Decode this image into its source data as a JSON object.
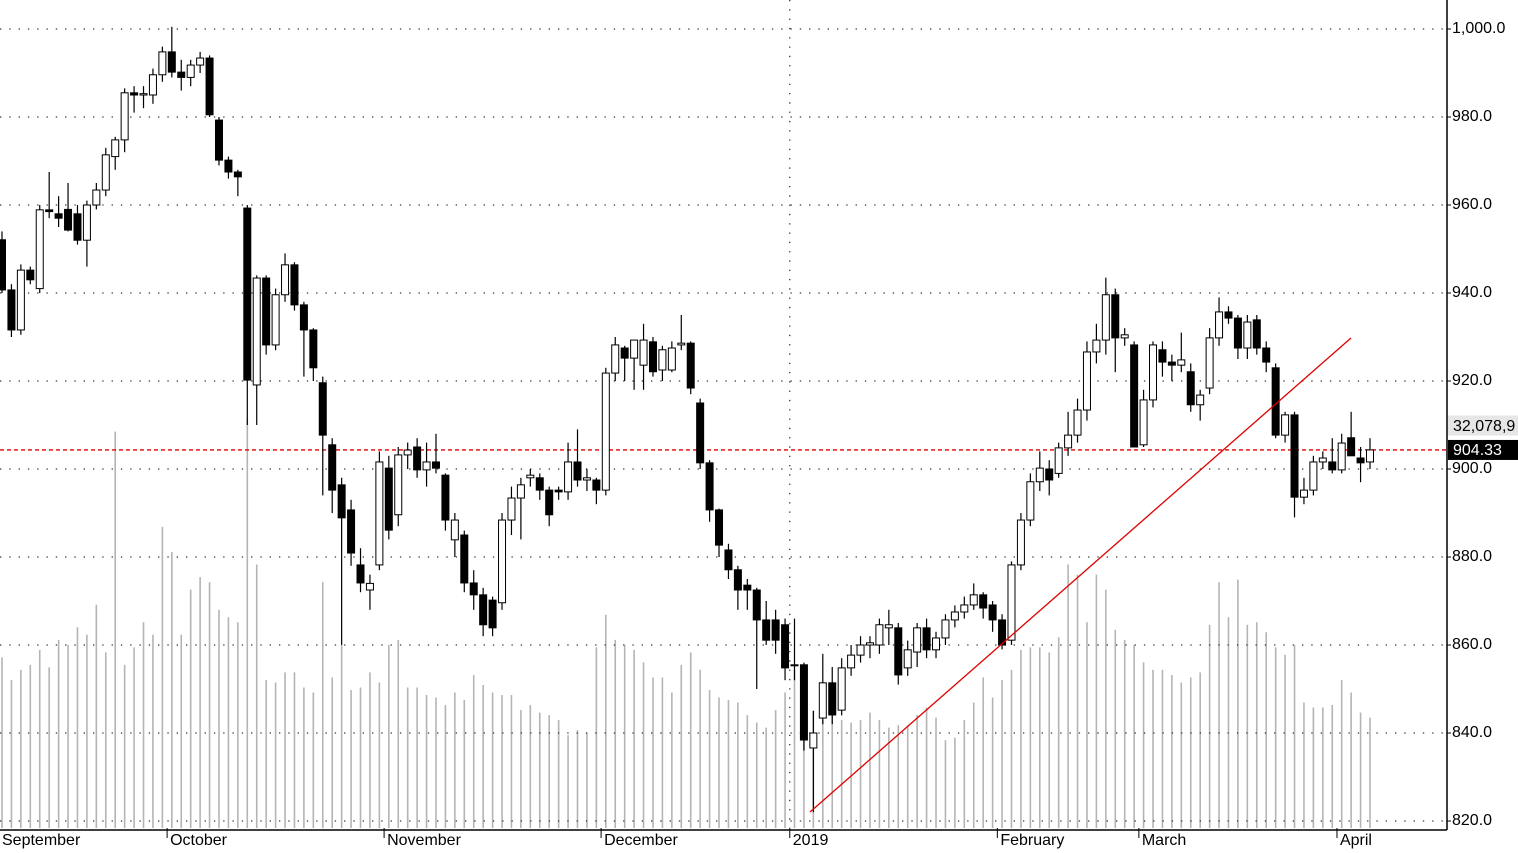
{
  "chart_data": {
    "type": "candlestick",
    "categories": [
      null,
      null,
      null,
      null,
      null,
      null,
      null,
      null,
      null,
      null,
      null,
      null,
      null,
      null,
      null,
      null,
      null,
      null,
      "October",
      null,
      null,
      null,
      null,
      null,
      null,
      null,
      null,
      null,
      null,
      null,
      null,
      null,
      null,
      null,
      null,
      null,
      null,
      null,
      null,
      null,
      null,
      "November",
      null,
      null,
      null,
      null,
      null,
      null,
      null,
      null,
      null,
      null,
      null,
      null,
      null,
      null,
      null,
      null,
      null,
      null,
      null,
      null,
      null,
      null,
      "December",
      null,
      null,
      null,
      null,
      null,
      null,
      null,
      null,
      null,
      null,
      null,
      null,
      null,
      null,
      null,
      null,
      null,
      null,
      null,
      "2019",
      null,
      null,
      null,
      null,
      null,
      null,
      null,
      null,
      null,
      null,
      null,
      null,
      null,
      null,
      null,
      null,
      null,
      null,
      null,
      null,
      null,
      "February",
      null,
      null,
      null,
      null,
      null,
      null,
      null,
      null,
      null,
      null,
      null,
      null,
      null,
      null,
      "March",
      null,
      null,
      null,
      null,
      null,
      null,
      null,
      null,
      null,
      null,
      null,
      null,
      null,
      null,
      null,
      null,
      null,
      null,
      null,
      null,
      "April",
      null,
      null,
      null
    ],
    "first_label": "September",
    "candles": [
      [
        952.1,
        954,
        940,
        940.7
      ],
      [
        940.7,
        942,
        930,
        931.6
      ],
      [
        931.6,
        946.5,
        930.5,
        945.2
      ],
      [
        945.2,
        946,
        942,
        943
      ],
      [
        941,
        960,
        940,
        958.9
      ],
      [
        958.9,
        967.5,
        957,
        958.5
      ],
      [
        958,
        962,
        955,
        957
      ],
      [
        959,
        965,
        954,
        954.3
      ],
      [
        958,
        960,
        951,
        952
      ],
      [
        952,
        961,
        946,
        960
      ],
      [
        960,
        965,
        959,
        963.4
      ],
      [
        963.4,
        973,
        962,
        971.4
      ],
      [
        971,
        975.5,
        968,
        974.8
      ],
      [
        974.8,
        986.5,
        972,
        985.5
      ],
      [
        985.5,
        987,
        981,
        985
      ],
      [
        985,
        987,
        982,
        985.3
      ],
      [
        985,
        991,
        983,
        989.6
      ],
      [
        989.6,
        996,
        988,
        994.8
      ],
      [
        994.8,
        1000.5,
        989,
        990.2
      ],
      [
        990.2,
        993,
        986,
        989
      ],
      [
        989,
        993,
        987,
        991.8
      ],
      [
        991.8,
        994.8,
        990,
        993.4
      ],
      [
        993.4,
        994,
        980,
        980.5
      ],
      [
        979.3,
        980,
        969,
        970.2
      ],
      [
        970.2,
        971,
        966,
        967.5
      ],
      [
        967.5,
        968,
        962,
        966.4
      ],
      [
        959.3,
        960,
        910,
        920.2
      ],
      [
        919.1,
        944,
        910,
        943.4
      ],
      [
        943.4,
        944,
        926,
        928.2
      ],
      [
        928.2,
        941,
        927,
        939.6
      ],
      [
        939.6,
        949,
        938,
        946.4
      ],
      [
        946.4,
        947,
        936,
        937.3
      ],
      [
        937.3,
        938,
        921,
        931.6
      ],
      [
        931.6,
        932,
        920,
        923
      ],
      [
        919.6,
        921,
        894,
        907.7
      ],
      [
        905.5,
        907,
        890,
        895.2
      ],
      [
        896.4,
        898,
        860,
        888.9
      ],
      [
        890.7,
        893,
        878,
        880.9
      ],
      [
        878.2,
        882,
        872,
        874.1
      ],
      [
        872.5,
        876,
        868,
        874
      ],
      [
        878.2,
        904,
        877,
        901.6
      ],
      [
        900.2,
        903,
        884,
        886.1
      ],
      [
        889.6,
        905,
        887,
        903.2
      ],
      [
        903.2,
        906,
        900,
        904.3
      ],
      [
        905,
        907,
        898,
        899.8
      ],
      [
        899.8,
        906,
        896,
        901.6
      ],
      [
        901.6,
        908,
        899,
        900.2
      ],
      [
        898.6,
        899,
        886,
        888.4
      ],
      [
        883.9,
        890,
        880,
        888.4
      ],
      [
        885,
        886,
        872,
        874.1
      ],
      [
        874.1,
        877,
        868,
        871.4
      ],
      [
        871.4,
        873,
        862,
        864.6
      ],
      [
        870.2,
        871,
        862,
        863.9
      ],
      [
        869.6,
        890,
        868,
        888.4
      ],
      [
        888.4,
        896,
        885,
        893.4
      ],
      [
        893.4,
        898,
        884,
        896.4
      ],
      [
        898,
        900,
        896,
        898.6
      ],
      [
        898,
        899,
        893,
        895.2
      ],
      [
        895.2,
        896,
        887,
        889.6
      ],
      [
        895.2,
        896,
        893,
        894.8
      ],
      [
        894.8,
        906,
        893,
        901.6
      ],
      [
        901.6,
        909,
        896,
        897.5
      ],
      [
        897.5,
        900,
        895,
        898
      ],
      [
        897.5,
        898,
        892,
        895.2
      ],
      [
        895.2,
        923,
        894,
        921.8
      ],
      [
        921.8,
        930,
        920,
        928.2
      ],
      [
        927.5,
        928,
        920,
        925.2
      ],
      [
        925.2,
        929,
        918,
        929.3
      ],
      [
        923.6,
        933,
        918,
        929.3
      ],
      [
        928.9,
        930,
        921,
        922.1
      ],
      [
        922.5,
        928,
        920,
        927.1
      ],
      [
        922.5,
        929,
        922,
        927.5
      ],
      [
        928.2,
        935,
        927,
        928.6
      ],
      [
        928.6,
        929,
        917,
        918.4
      ],
      [
        915,
        916,
        900,
        901.4
      ],
      [
        901.4,
        902,
        888,
        890.7
      ],
      [
        890.7,
        891,
        880,
        882.7
      ],
      [
        881.6,
        883,
        875,
        877.1
      ],
      [
        877.1,
        878,
        868,
        872.5
      ],
      [
        873.6,
        875,
        868,
        872.5
      ],
      [
        872.5,
        873,
        850,
        865.7
      ],
      [
        865.7,
        870,
        860,
        861.1
      ],
      [
        865.7,
        868,
        858,
        861.1
      ],
      [
        864.6,
        866,
        852,
        854.8
      ],
      [
        855.5,
        866,
        852,
        855.5
      ],
      [
        855.5,
        856,
        836,
        838.4
      ],
      [
        836.6,
        845,
        822,
        840
      ],
      [
        843.4,
        858,
        842,
        851.4
      ],
      [
        851.4,
        855,
        842,
        844.1
      ],
      [
        845.2,
        857,
        844,
        854.8
      ],
      [
        854.8,
        860,
        853,
        857.7
      ],
      [
        857.7,
        862,
        856,
        860
      ],
      [
        860,
        862,
        857,
        860.5
      ],
      [
        860,
        866,
        858,
        864.6
      ],
      [
        863.9,
        868,
        860,
        864.6
      ],
      [
        863.9,
        865,
        851,
        853.2
      ],
      [
        854.8,
        861,
        853,
        858.9
      ],
      [
        858.4,
        865,
        855,
        863.9
      ],
      [
        863.9,
        866,
        857,
        858.9
      ],
      [
        858.9,
        863,
        857,
        861.6
      ],
      [
        861.6,
        867,
        860,
        865.7
      ],
      [
        865.7,
        869,
        864,
        867.5
      ],
      [
        867.5,
        871,
        866,
        869.1
      ],
      [
        869.1,
        874,
        868,
        871.4
      ],
      [
        871.4,
        872,
        866,
        868.4
      ],
      [
        869.1,
        870,
        863,
        865.7
      ],
      [
        865.7,
        867,
        859,
        860
      ],
      [
        861.1,
        879,
        860,
        878.2
      ],
      [
        878.2,
        890,
        877,
        888.4
      ],
      [
        888.4,
        899,
        887,
        897.1
      ],
      [
        897.1,
        904,
        895,
        900.2
      ],
      [
        900,
        902,
        894,
        897.5
      ],
      [
        899,
        906,
        898,
        904.8
      ],
      [
        904.8,
        913,
        903,
        907.7
      ],
      [
        907.7,
        916,
        906,
        913.4
      ],
      [
        913.4,
        929,
        911,
        926.6
      ],
      [
        926.6,
        933,
        924,
        929.3
      ],
      [
        929.3,
        943.5,
        926,
        939.6
      ],
      [
        939.6,
        941,
        922,
        929.8
      ],
      [
        929.8,
        932,
        928,
        930.5
      ],
      [
        928.2,
        929,
        905,
        905
      ],
      [
        905.5,
        918,
        905,
        915.7
      ],
      [
        915.7,
        929,
        914,
        928.2
      ],
      [
        927.1,
        929,
        921,
        924.3
      ],
      [
        924.3,
        926,
        920,
        923.6
      ],
      [
        923.6,
        931,
        922,
        924.8
      ],
      [
        922.1,
        924,
        913,
        914.6
      ],
      [
        914.6,
        918,
        911,
        916.8
      ],
      [
        918.4,
        932,
        917,
        929.8
      ],
      [
        929.8,
        939,
        928,
        935.7
      ],
      [
        935.7,
        937,
        933,
        934.3
      ],
      [
        934.3,
        935,
        925,
        927.5
      ],
      [
        927.5,
        935,
        925,
        933.4
      ],
      [
        933.9,
        935,
        926,
        927.5
      ],
      [
        927.5,
        929,
        922,
        924.3
      ],
      [
        923,
        924,
        907,
        907.7
      ],
      [
        907.7,
        913,
        906,
        912.3
      ],
      [
        912.3,
        913,
        889,
        893.6
      ],
      [
        893.6,
        898,
        892,
        895.2
      ],
      [
        895.2,
        903,
        894,
        901.6
      ],
      [
        901.6,
        904,
        900,
        902.5
      ],
      [
        901.6,
        907,
        899,
        899.8
      ],
      [
        899.8,
        908,
        899,
        905.9
      ],
      [
        907.1,
        913,
        903,
        903
      ],
      [
        902.5,
        905,
        897,
        901.4
      ],
      [
        901.6,
        907,
        900,
        904.33
      ]
    ],
    "volume": [
      13.6,
      11.8,
      12.6,
      13.0,
      14.2,
      12.8,
      15.0,
      14.6,
      16.0,
      15.4,
      17.8,
      14.0,
      31.6,
      13.0,
      14.4,
      16.4,
      15.4,
      24.0,
      22.0,
      15.4,
      19.0,
      20.0,
      19.6,
      17.4,
      16.8,
      16.4,
      32.6,
      21.0,
      11.8,
      11.6,
      12.4,
      12.4,
      11.2,
      10.8,
      19.6,
      12.0,
      14.6,
      11.0,
      11.2,
      12.4,
      11.6,
      14.6,
      15.0,
      11.2,
      11.2,
      10.6,
      10.4,
      9.8,
      10.8,
      10.2,
      12.2,
      11.4,
      10.8,
      10.6,
      10.6,
      9.4,
      9.8,
      9.2,
      9.0,
      8.6,
      7.4,
      7.8,
      7.6,
      14.4,
      17.0,
      15.0,
      14.6,
      14.2,
      13.2,
      12.0,
      12.0,
      10.8,
      13.0,
      14.0,
      12.6,
      11.0,
      10.4,
      10.2,
      10.0,
      9.0,
      8.4,
      8.0,
      9.4,
      10.8,
      12.6,
      13.0,
      9.4,
      8.6,
      9.6,
      8.6,
      8.4,
      8.6,
      9.2,
      8.6,
      8.0,
      8.2,
      8.2,
      9.0,
      9.6,
      8.8,
      7.0,
      7.2,
      8.6,
      10.0,
      12.0,
      10.4,
      11.8,
      12.6,
      14.2,
      14.4,
      14.4,
      14.0,
      15.2,
      21.0,
      20.2,
      16.4,
      20.2,
      19.0,
      15.8,
      15.0,
      14.6,
      13.2,
      12.6,
      12.6,
      12.2,
      11.6,
      12.0,
      12.4,
      16.2,
      19.6,
      16.8,
      19.8,
      16.2,
      16.4,
      15.6,
      14.4,
      13.8,
      14.6,
      10.0,
      9.6,
      9.6,
      9.8,
      11.8,
      10.8,
      9.2,
      8.8
    ],
    "volume_label": {
      "value": 32.0789,
      "label": "32,078,9"
    },
    "ylim": [
      820,
      1000
    ],
    "yticks": [
      {
        "value": 820,
        "label": "820.0"
      },
      {
        "value": 840,
        "label": "840.0"
      },
      {
        "value": 860,
        "label": "860.0"
      },
      {
        "value": 880,
        "label": "880.0"
      },
      {
        "value": 900,
        "label": "900.0"
      },
      {
        "value": 920,
        "label": "920.0"
      },
      {
        "value": 940,
        "label": "940.0"
      },
      {
        "value": 960,
        "label": "960.0"
      },
      {
        "value": 980,
        "label": "980.0"
      },
      {
        "value": 1000,
        "label": "1,000.0"
      }
    ],
    "y2lim": [
      0,
      66
    ],
    "grid": true,
    "up_color": "#ffffff",
    "down_color": "#000000",
    "volume_color": "#b4b4b4",
    "last_line_color": "#e00000"
  }
}
